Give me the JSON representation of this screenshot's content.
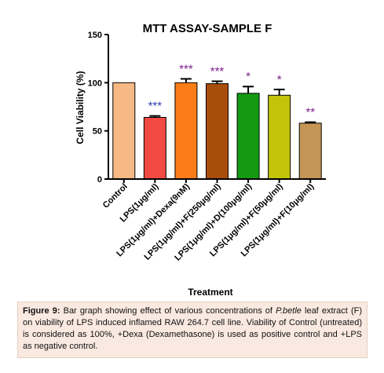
{
  "chart_data": {
    "type": "bar",
    "title": "MTT ASSAY-SAMPLE F",
    "xlabel": "Treatment",
    "ylabel": "Cell Viability (%)",
    "ylim": [
      0,
      150
    ],
    "yticks": [
      "0",
      "50",
      "100",
      "150"
    ],
    "categories": [
      "Control",
      "LPS(1μg/ml)",
      "LPS(1μg/ml)+Dexa(9nM)",
      "LPS(1μg/ml)+F(250μg/ml)",
      "LPS(1μg/ml)+D(100μg/ml)",
      "LPS(1μg/ml)+F(50μg/ml)",
      "LPS(1μg/ml)+F(10μg/ml)"
    ],
    "values": [
      100,
      64,
      100,
      99,
      89,
      87,
      58
    ],
    "errors": [
      0,
      1.5,
      4,
      2.5,
      7,
      6,
      1
    ],
    "significance": [
      "",
      "***",
      "***",
      "***",
      "*",
      "*",
      "**"
    ],
    "bar_colors": [
      "#f6b884",
      "#f24a43",
      "#fb7d18",
      "#a94d0c",
      "#139a11",
      "#c2c40a",
      "#c39657"
    ],
    "significance_colors": [
      "",
      "#2f3fae",
      "#7a1f8a",
      "#7a1f8a",
      "#7a1f8a",
      "#7a1f8a",
      "#7a1f8a"
    ]
  },
  "caption": {
    "label": "Figure 9:",
    "text_before_species": " Bar graph showing effect of various concentrations of ",
    "species": "P.betle",
    "text_after_species": " leaf extract (F) on viability of LPS induced inflamed RAW 264.7 cell line. Viability of Control (untreated) is considered as 100%, +Dexa (Dexamethasone) is used as positive control and +LPS as negative control."
  }
}
